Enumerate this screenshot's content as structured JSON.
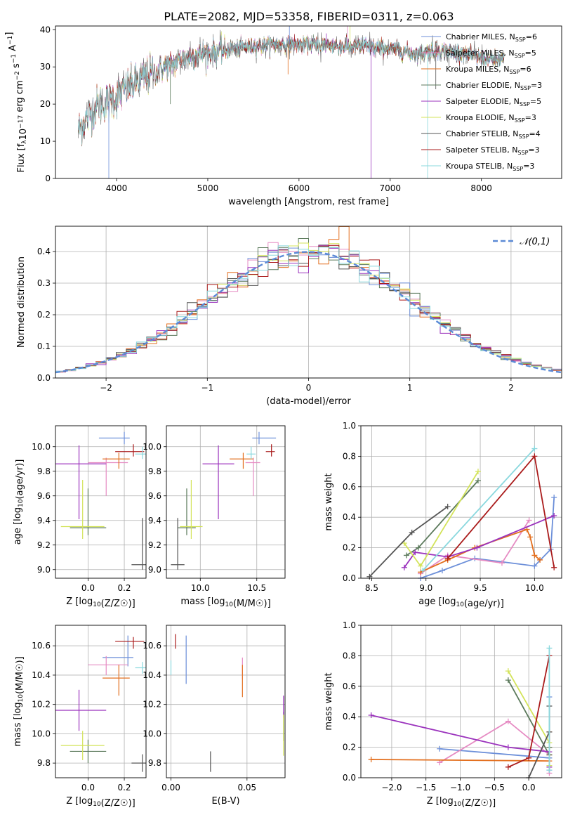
{
  "figure_title": "PLATE=2082, MJD=53358, FIBERID=0311, z=0.063",
  "model_colors": [
    "#6c8fd9",
    "#e68bc3",
    "#e36f1e",
    "#5c7a5c",
    "#9b33bd",
    "#d3e35a",
    "#555555",
    "#aa1b1b",
    "#8ad8de"
  ],
  "chart_data": [
    {
      "id": "spectrum",
      "type": "line",
      "title": "PLATE=2082, MJD=53358, FIBERID=0311, z=0.063",
      "xlabel": "wavelength [Angstrom, rest frame]",
      "ylabel": "Flux [f_λ10^-17 erg cm^-2 s^-1 A^-1]",
      "xlim": [
        3330,
        8880
      ],
      "ylim": [
        0,
        41
      ],
      "xticks": [
        4000,
        5000,
        6000,
        7000,
        8000
      ],
      "yticks": [
        0,
        10,
        20,
        30,
        40
      ],
      "grid": false,
      "legend_position": "right",
      "legend": [
        {
          "label": "Chabrier MILES, N",
          "sub": "SSP",
          "suffix": "=6",
          "color": "#6c8fd9"
        },
        {
          "label": "Salpeter MILES, N",
          "sub": "SSP",
          "suffix": "=5",
          "color": "#e68bc3"
        },
        {
          "label": "Kroupa MILES, N",
          "sub": "SSP",
          "suffix": "=6",
          "color": "#e36f1e"
        },
        {
          "label": "Chabrier ELODIE, N",
          "sub": "SSP",
          "suffix": "=3",
          "color": "#5c7a5c"
        },
        {
          "label": "Salpeter ELODIE, N",
          "sub": "SSP",
          "suffix": "=5",
          "color": "#9b33bd"
        },
        {
          "label": "Kroupa ELODIE, N",
          "sub": "SSP",
          "suffix": "=3",
          "color": "#d3e35a"
        },
        {
          "label": "Chabrier STELIB, N",
          "sub": "SSP",
          "suffix": "=4",
          "color": "#555555"
        },
        {
          "label": "Salpeter STELIB, N",
          "sub": "SSP",
          "suffix": "=3",
          "color": "#aa1b1b"
        },
        {
          "label": "Kroupa STELIB, N",
          "sub": "SSP",
          "suffix": "=3",
          "color": "#8ad8de"
        }
      ],
      "continuum": [
        [
          3580,
          13
        ],
        [
          3700,
          17
        ],
        [
          3800,
          20
        ],
        [
          3900,
          20.5
        ],
        [
          4000,
          22
        ],
        [
          4100,
          24
        ],
        [
          4200,
          25.5
        ],
        [
          4300,
          27
        ],
        [
          4500,
          29.5
        ],
        [
          4700,
          32
        ],
        [
          4900,
          33.5
        ],
        [
          5100,
          34
        ],
        [
          5300,
          35
        ],
        [
          5500,
          35.5
        ],
        [
          5700,
          36
        ],
        [
          5900,
          36
        ],
        [
          6100,
          36
        ],
        [
          6300,
          36
        ],
        [
          6500,
          35.5
        ],
        [
          6700,
          35.5
        ],
        [
          6900,
          35
        ],
        [
          7100,
          34.5
        ],
        [
          7300,
          33.5
        ],
        [
          7500,
          34.5
        ],
        [
          7700,
          34
        ],
        [
          7900,
          33
        ],
        [
          8100,
          32
        ],
        [
          8250,
          32
        ]
      ],
      "spikes": [
        [
          3915,
          0
        ],
        [
          6790,
          0
        ],
        [
          7410,
          0
        ],
        [
          4590,
          20
        ],
        [
          4870,
          30
        ],
        [
          5880,
          28
        ],
        [
          7500,
          24
        ],
        [
          6530,
          41
        ],
        [
          6560,
          41
        ],
        [
          5895,
          42
        ],
        [
          6300,
          39
        ],
        [
          6710,
          38
        ]
      ]
    },
    {
      "id": "residuals",
      "type": "histogram",
      "xlabel": "(data-model)/error",
      "ylabel": "Normed distribution",
      "xlim": [
        -2.5,
        2.5
      ],
      "ylim": [
        0,
        0.48
      ],
      "xticks": [
        -2,
        -1,
        0,
        1,
        2
      ],
      "yticks": [
        0.0,
        0.1,
        0.2,
        0.3,
        0.4
      ],
      "grid": true,
      "legend_position": "top-right",
      "legend_label": "𝒩(0,1)",
      "reference_curve": {
        "mean": 0,
        "sigma": 1,
        "color": "#5b8ad6"
      },
      "bin_width": 0.1
    },
    {
      "id": "age-vs-Z",
      "type": "errorbar",
      "xlabel": "Z [log10(Z/Z☉)]",
      "ylabel": "age  [log10(age/yr)]",
      "xlim": [
        -0.18,
        0.32
      ],
      "ylim": [
        8.93,
        10.17
      ],
      "xticks": [
        0.0,
        0.2
      ],
      "yticks": [
        9.0,
        9.2,
        9.4,
        9.6,
        9.8,
        10.0
      ],
      "grid": true,
      "points": [
        {
          "x": 0.2,
          "y": 10.07,
          "xerr": [
            0.14,
            0.03
          ],
          "yerr": [
            0.05,
            0.05
          ],
          "color": "#6c8fd9"
        },
        {
          "x": 0.1,
          "y": 9.87,
          "xerr": [
            0.1,
            0.12
          ],
          "yerr": [
            0.27,
            0.04
          ],
          "color": "#e68bc3"
        },
        {
          "x": 0.17,
          "y": 9.9,
          "xerr": [
            0.09,
            0.06
          ],
          "yerr": [
            0.08,
            0.05
          ],
          "color": "#e36f1e"
        },
        {
          "x": 0.0,
          "y": 9.34,
          "xerr": [
            0.1,
            0.1
          ],
          "yerr": [
            0.06,
            0.32
          ],
          "color": "#5c7a5c"
        },
        {
          "x": -0.05,
          "y": 9.86,
          "xerr": [
            0.15,
            0.15
          ],
          "yerr": [
            0.45,
            0.15
          ],
          "color": "#9b33bd"
        },
        {
          "x": -0.03,
          "y": 9.35,
          "xerr": [
            0.12,
            0.12
          ],
          "yerr": [
            0.1,
            0.38
          ],
          "color": "#d3e35a"
        },
        {
          "x": 0.3,
          "y": 9.04,
          "xerr": [
            0.06,
            0.03
          ],
          "yerr": [
            0.04,
            0.38
          ],
          "color": "#555555"
        },
        {
          "x": 0.25,
          "y": 9.96,
          "xerr": [
            0.1,
            0.06
          ],
          "yerr": [
            0.04,
            0.06
          ],
          "color": "#aa1b1b"
        },
        {
          "x": 0.3,
          "y": 9.94,
          "xerr": [
            0.04,
            0.02
          ],
          "yerr": [
            0.04,
            0.06
          ],
          "color": "#8ad8de"
        }
      ]
    },
    {
      "id": "age-vs-mass",
      "type": "errorbar",
      "xlabel": "mass [log10(M/M☉)]",
      "ylabel": "",
      "xlim": [
        9.7,
        10.75
      ],
      "ylim": [
        8.93,
        10.17
      ],
      "xticks": [
        10.0,
        10.5
      ],
      "yticks": [
        9.0,
        9.2,
        9.4,
        9.6,
        9.8,
        10.0
      ],
      "grid": true,
      "points": [
        {
          "x": 10.52,
          "y": 10.07,
          "xerr": [
            0.06,
            0.15
          ],
          "yerr": [
            0.05,
            0.05
          ],
          "color": "#6c8fd9"
        },
        {
          "x": 10.47,
          "y": 9.87,
          "xerr": [
            0.07,
            0.06
          ],
          "yerr": [
            0.27,
            0.04
          ],
          "color": "#e68bc3"
        },
        {
          "x": 10.38,
          "y": 9.9,
          "xerr": [
            0.12,
            0.09
          ],
          "yerr": [
            0.08,
            0.05
          ],
          "color": "#e36f1e"
        },
        {
          "x": 9.88,
          "y": 9.34,
          "xerr": [
            0.08,
            0.08
          ],
          "yerr": [
            0.06,
            0.32
          ],
          "color": "#5c7a5c"
        },
        {
          "x": 10.16,
          "y": 9.86,
          "xerr": [
            0.14,
            0.14
          ],
          "yerr": [
            0.45,
            0.15
          ],
          "color": "#9b33bd"
        },
        {
          "x": 9.92,
          "y": 9.35,
          "xerr": [
            0.1,
            0.1
          ],
          "yerr": [
            0.1,
            0.38
          ],
          "color": "#d3e35a"
        },
        {
          "x": 9.8,
          "y": 9.04,
          "xerr": [
            0.06,
            0.06
          ],
          "yerr": [
            0.04,
            0.38
          ],
          "color": "#555555"
        },
        {
          "x": 10.63,
          "y": 9.96,
          "xerr": [
            0.05,
            0.03
          ],
          "yerr": [
            0.04,
            0.06
          ],
          "color": "#aa1b1b"
        },
        {
          "x": 10.45,
          "y": 9.94,
          "xerr": [
            0.04,
            0.04
          ],
          "yerr": [
            0.04,
            0.06
          ],
          "color": "#8ad8de"
        }
      ]
    },
    {
      "id": "weight-vs-age",
      "type": "line",
      "xlabel": "age  [log10(age/yr)]",
      "ylabel": "mass weight",
      "xlim": [
        8.4,
        10.25
      ],
      "ylim": [
        0,
        1
      ],
      "xticks": [
        8.5,
        9.0,
        9.5,
        10.0
      ],
      "yticks": [
        0.0,
        0.2,
        0.4,
        0.6,
        0.8,
        1.0
      ],
      "grid": true,
      "series": [
        {
          "color": "#6c8fd9",
          "x": [
            8.95,
            9.15,
            9.45,
            10.0,
            10.15,
            10.18
          ],
          "y": [
            0.0,
            0.05,
            0.13,
            0.08,
            0.19,
            0.53
          ]
        },
        {
          "color": "#e68bc3",
          "x": [
            8.95,
            9.2,
            9.7,
            9.95
          ],
          "y": [
            0.03,
            0.15,
            0.1,
            0.38
          ]
        },
        {
          "color": "#e36f1e",
          "x": [
            8.95,
            9.2,
            9.45,
            9.93,
            9.96,
            10.0,
            10.05
          ],
          "y": [
            0.04,
            0.12,
            0.2,
            0.32,
            0.27,
            0.15,
            0.12
          ]
        },
        {
          "color": "#5c7a5c",
          "x": [
            8.82,
            8.93,
            9.48
          ],
          "y": [
            0.15,
            0.2,
            0.64
          ]
        },
        {
          "color": "#9b33bd",
          "x": [
            8.8,
            8.9,
            9.2,
            9.47,
            10.18
          ],
          "y": [
            0.07,
            0.17,
            0.14,
            0.2,
            0.41
          ]
        },
        {
          "color": "#d3e35a",
          "x": [
            8.8,
            8.95,
            9.48
          ],
          "y": [
            0.23,
            0.08,
            0.7
          ]
        },
        {
          "color": "#555555",
          "x": [
            8.48,
            8.87,
            9.2
          ],
          "y": [
            0.01,
            0.3,
            0.47
          ]
        },
        {
          "color": "#aa1b1b",
          "x": [
            9.2,
            10.0,
            10.18
          ],
          "y": [
            0.13,
            0.8,
            0.07
          ]
        },
        {
          "color": "#8ad8de",
          "x": [
            8.97,
            10.0
          ],
          "y": [
            0.05,
            0.85
          ]
        }
      ]
    },
    {
      "id": "mass-vs-Z",
      "type": "errorbar",
      "xlabel": "Z [log10(Z/Z☉)]",
      "ylabel": "mass [log10(M/M☉)]",
      "xlim": [
        -0.18,
        0.32
      ],
      "ylim": [
        9.7,
        10.74
      ],
      "xticks": [
        0.0,
        0.2
      ],
      "yticks": [
        9.8,
        10.0,
        10.2,
        10.4,
        10.6
      ],
      "grid": true,
      "points": [
        {
          "x": 0.22,
          "y": 10.52,
          "xerr": [
            0.14,
            0.03
          ],
          "yerr": [
            0.06,
            0.15
          ],
          "color": "#6c8fd9"
        },
        {
          "x": 0.1,
          "y": 10.47,
          "xerr": [
            0.1,
            0.12
          ],
          "yerr": [
            0.07,
            0.06
          ],
          "color": "#e68bc3"
        },
        {
          "x": 0.17,
          "y": 10.38,
          "xerr": [
            0.09,
            0.06
          ],
          "yerr": [
            0.12,
            0.09
          ],
          "color": "#e36f1e"
        },
        {
          "x": 0.0,
          "y": 9.88,
          "xerr": [
            0.1,
            0.1
          ],
          "yerr": [
            0.08,
            0.08
          ],
          "color": "#5c7a5c"
        },
        {
          "x": -0.05,
          "y": 10.16,
          "xerr": [
            0.15,
            0.15
          ],
          "yerr": [
            0.14,
            0.14
          ],
          "color": "#9b33bd"
        },
        {
          "x": -0.03,
          "y": 9.92,
          "xerr": [
            0.12,
            0.12
          ],
          "yerr": [
            0.1,
            0.1
          ],
          "color": "#d3e35a"
        },
        {
          "x": 0.3,
          "y": 9.8,
          "xerr": [
            0.06,
            0.03
          ],
          "yerr": [
            0.06,
            0.06
          ],
          "color": "#555555"
        },
        {
          "x": 0.25,
          "y": 10.63,
          "xerr": [
            0.1,
            0.06
          ],
          "yerr": [
            0.05,
            0.03
          ],
          "color": "#aa1b1b"
        },
        {
          "x": 0.3,
          "y": 10.45,
          "xerr": [
            0.04,
            0.02
          ],
          "yerr": [
            0.04,
            0.04
          ],
          "color": "#8ad8de"
        }
      ]
    },
    {
      "id": "mass-vs-EBV",
      "type": "errorbar",
      "xlabel": "E(B-V)",
      "ylabel": "",
      "xlim": [
        -0.003,
        0.075
      ],
      "ylim": [
        9.7,
        10.74
      ],
      "xticks": [
        0.0,
        0.05
      ],
      "yticks": [
        9.8,
        10.0,
        10.2,
        10.4,
        10.6
      ],
      "grid": true,
      "points": [
        {
          "x": 0.01,
          "y": 10.52,
          "xerr": [
            0,
            0
          ],
          "yerr": [
            0.18,
            0.15
          ],
          "color": "#6c8fd9"
        },
        {
          "x": 0.047,
          "y": 10.42,
          "xerr": [
            0,
            0
          ],
          "yerr": [
            0.05,
            0.1
          ],
          "color": "#e68bc3"
        },
        {
          "x": 0.047,
          "y": 10.38,
          "xerr": [
            0,
            0
          ],
          "yerr": [
            0.13,
            0.09
          ],
          "color": "#e36f1e"
        },
        {
          "x": 0.074,
          "y": 10.05,
          "xerr": [
            0,
            0
          ],
          "yerr": [
            0.1,
            0.1
          ],
          "color": "#5c7a5c"
        },
        {
          "x": 0.074,
          "y": 10.16,
          "xerr": [
            0,
            0
          ],
          "yerr": [
            0.05,
            0.1
          ],
          "color": "#9b33bd"
        },
        {
          "x": 0.074,
          "y": 9.95,
          "xerr": [
            0,
            0
          ],
          "yerr": [
            0.1,
            0.18
          ],
          "color": "#d3e35a"
        },
        {
          "x": 0.026,
          "y": 9.8,
          "xerr": [
            0,
            0
          ],
          "yerr": [
            0.06,
            0.08
          ],
          "color": "#555555"
        },
        {
          "x": 0.003,
          "y": 10.63,
          "xerr": [
            0,
            0
          ],
          "yerr": [
            0.05,
            0.05
          ],
          "color": "#aa1b1b"
        },
        {
          "x": 0.0,
          "y": 10.45,
          "xerr": [
            0,
            0
          ],
          "yerr": [
            0.05,
            0.05
          ],
          "color": "#8ad8de"
        }
      ]
    },
    {
      "id": "weight-vs-Z",
      "type": "line",
      "xlabel": "Z [log10(Z/Z☉)]",
      "ylabel": "mass weight",
      "xlim": [
        -2.45,
        0.48
      ],
      "ylim": [
        0,
        1
      ],
      "xticks": [
        -2.0,
        -1.5,
        -1.0,
        -0.5,
        0.0
      ],
      "yticks": [
        0.0,
        0.2,
        0.4,
        0.6,
        0.8,
        1.0
      ],
      "grid": true,
      "series": [
        {
          "color": "#6c8fd9",
          "x": [
            -1.3,
            0.3,
            0.3,
            0.3
          ],
          "y": [
            0.19,
            0.13,
            0.05,
            0.53
          ]
        },
        {
          "color": "#e68bc3",
          "x": [
            -1.3,
            -0.3,
            0.3,
            0.3
          ],
          "y": [
            0.1,
            0.37,
            0.15,
            0.03
          ]
        },
        {
          "color": "#e36f1e",
          "x": [
            -2.3,
            0.3,
            0.3,
            0.3,
            0.3
          ],
          "y": [
            0.12,
            0.11,
            0.2,
            0.3,
            0.15
          ]
        },
        {
          "color": "#5c7a5c",
          "x": [
            -0.3,
            0.3,
            0.3
          ],
          "y": [
            0.64,
            0.15,
            0.2
          ]
        },
        {
          "color": "#9b33bd",
          "x": [
            -2.3,
            -0.3,
            0.3,
            0.3
          ],
          "y": [
            0.41,
            0.2,
            0.17,
            0.07
          ]
        },
        {
          "color": "#d3e35a",
          "x": [
            -0.3,
            0.3,
            0.3
          ],
          "y": [
            0.7,
            0.23,
            0.08
          ]
        },
        {
          "color": "#555555",
          "x": [
            0.0,
            0.3,
            0.3
          ],
          "y": [
            0.0,
            0.3,
            0.47
          ]
        },
        {
          "color": "#aa1b1b",
          "x": [
            -0.3,
            0.0,
            0.3
          ],
          "y": [
            0.07,
            0.13,
            0.8
          ]
        },
        {
          "color": "#8ad8de",
          "x": [
            0.3,
            0.3
          ],
          "y": [
            0.05,
            0.85
          ]
        }
      ]
    }
  ]
}
